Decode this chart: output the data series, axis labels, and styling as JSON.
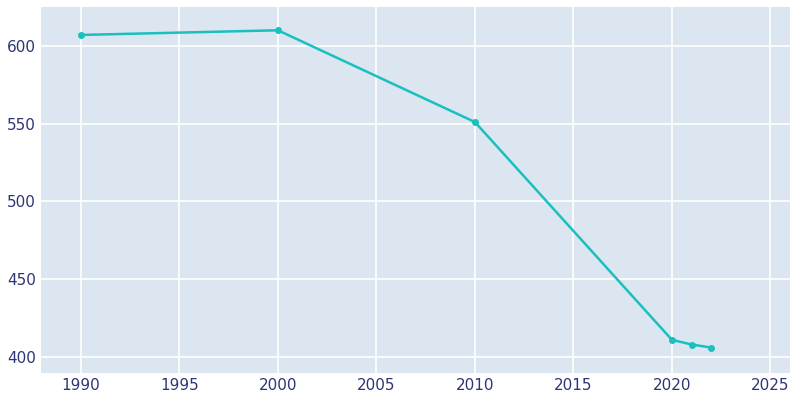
{
  "years": [
    1990,
    2000,
    2010,
    2020,
    2021,
    2022
  ],
  "population": [
    607,
    610,
    551,
    411,
    408,
    406
  ],
  "line_color": "#1abfbf",
  "marker_color": "#1abfbf",
  "plot_background_color": "#dce6f0",
  "fig_background_color": "#ffffff",
  "grid_color": "#ffffff",
  "xlim": [
    1988,
    2026
  ],
  "ylim": [
    390,
    625
  ],
  "yticks": [
    400,
    450,
    500,
    550,
    600
  ],
  "xticks": [
    1990,
    1995,
    2000,
    2005,
    2010,
    2015,
    2020,
    2025
  ],
  "tick_color": "#2d3575",
  "linewidth": 1.8,
  "markersize": 4
}
